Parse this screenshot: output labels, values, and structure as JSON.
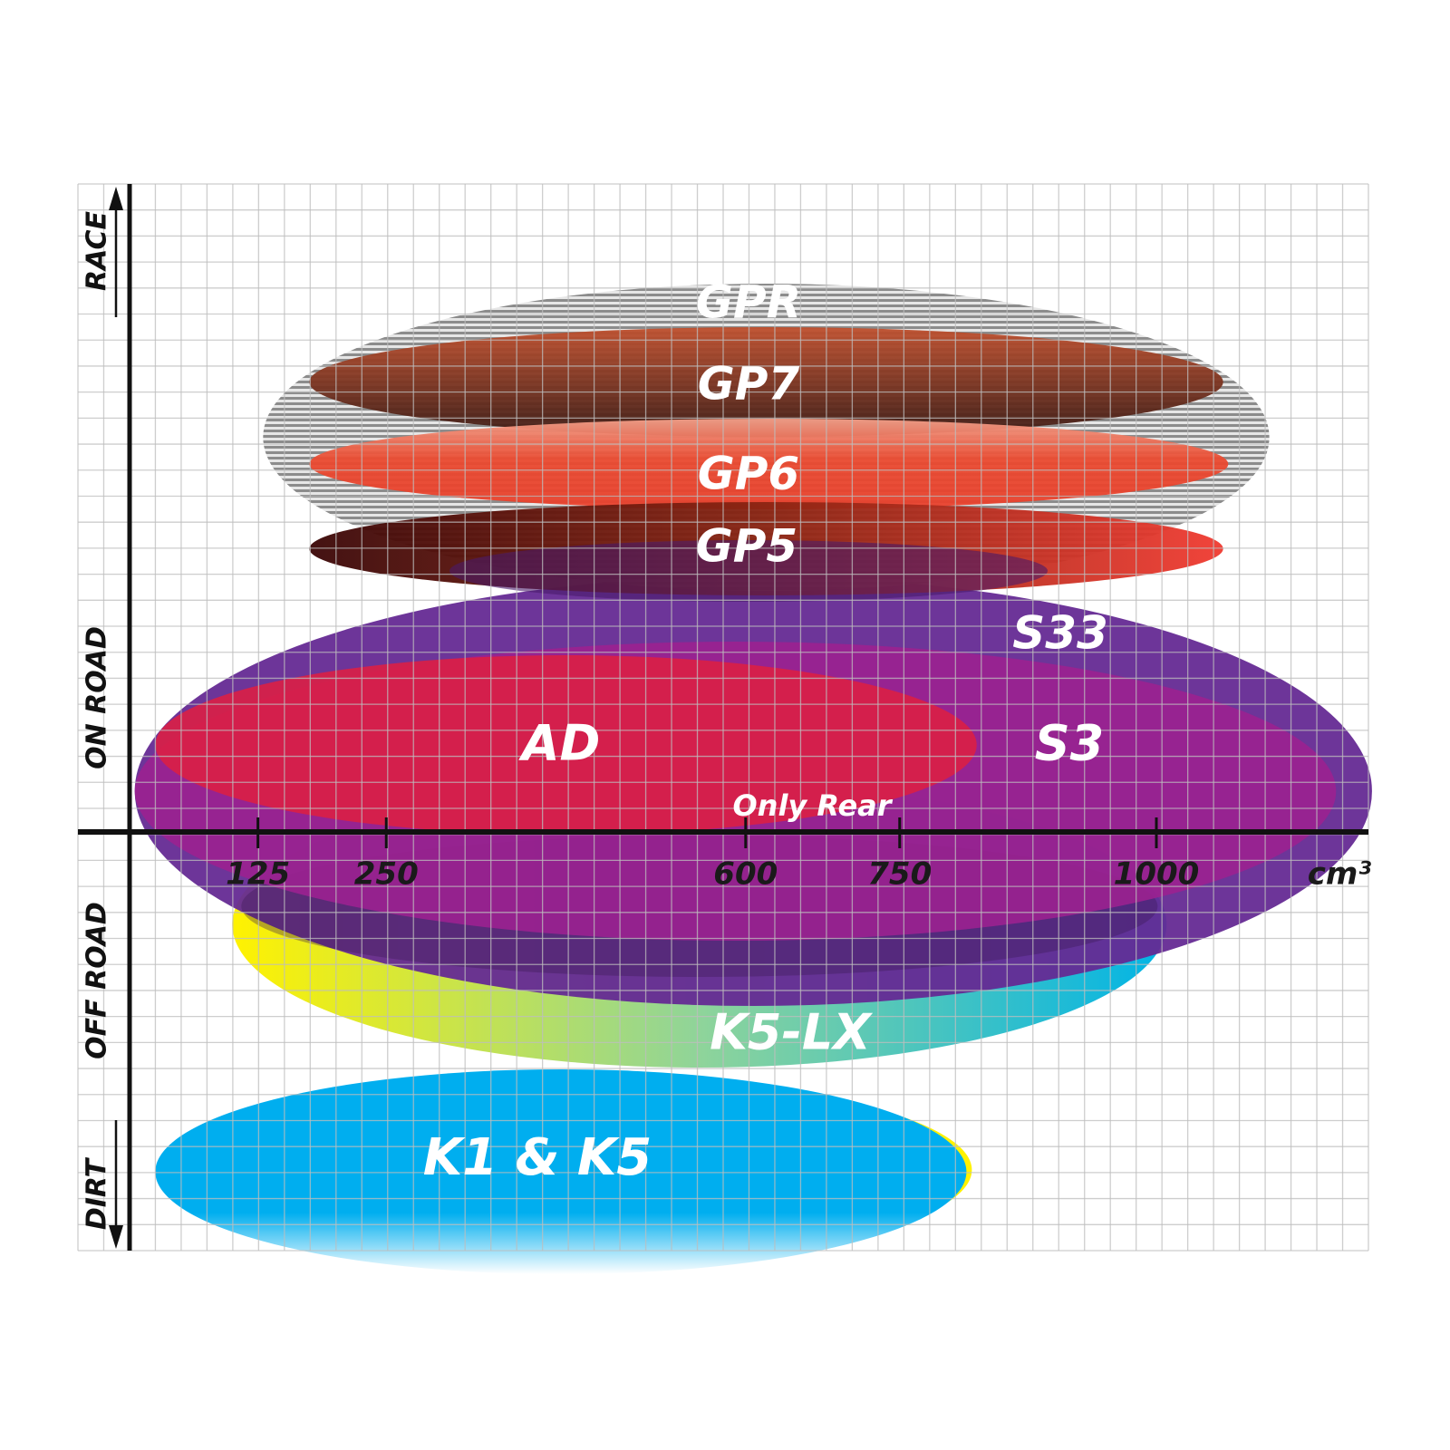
{
  "chart_data": {
    "type": "ellipse-range",
    "xlabel": "cm³",
    "x_ticks": [
      "125",
      "250",
      "600",
      "750",
      "1000"
    ],
    "x_tick_values": [
      125,
      250,
      600,
      750,
      1000
    ],
    "y_categories": [
      "RACE",
      "ON ROAD",
      "OFF ROAD",
      "DIRT"
    ],
    "grid": true,
    "series": [
      {
        "name": "GPR",
        "cc_min": 130,
        "cc_max": 1110,
        "category": "RACE",
        "color": "#9a9a9a"
      },
      {
        "name": "GP7",
        "cc_min": 175,
        "cc_max": 1065,
        "category": "RACE",
        "color": "#8a3a2a"
      },
      {
        "name": "GP6",
        "cc_min": 175,
        "cc_max": 1070,
        "category": "RACE",
        "color": "#e8402c"
      },
      {
        "name": "GP5",
        "cc_min": 175,
        "cc_max": 1065,
        "category": "RACE",
        "color": "#a01818"
      },
      {
        "name": "S33",
        "cc_min": 5,
        "cc_max": 1210,
        "category": "ON ROAD",
        "color": "#652a94"
      },
      {
        "name": "S3",
        "cc_min": 5,
        "cc_max": 1175,
        "category": "ON ROAD",
        "color": "#9b2190"
      },
      {
        "name": "AD",
        "cc_min": 25,
        "cc_max": 825,
        "category": "ON ROAD",
        "color": "#d91f46"
      },
      {
        "name": "K5-LX",
        "cc_min": 100,
        "cc_max": 1010,
        "category": "OFF ROAD",
        "color": "#1ab8d8"
      },
      {
        "name": "K1 & K5",
        "cc_min": 25,
        "cc_max": 815,
        "category": "DIRT",
        "color": "#00aeef"
      }
    ],
    "annotations": [
      "Only Rear"
    ]
  }
}
